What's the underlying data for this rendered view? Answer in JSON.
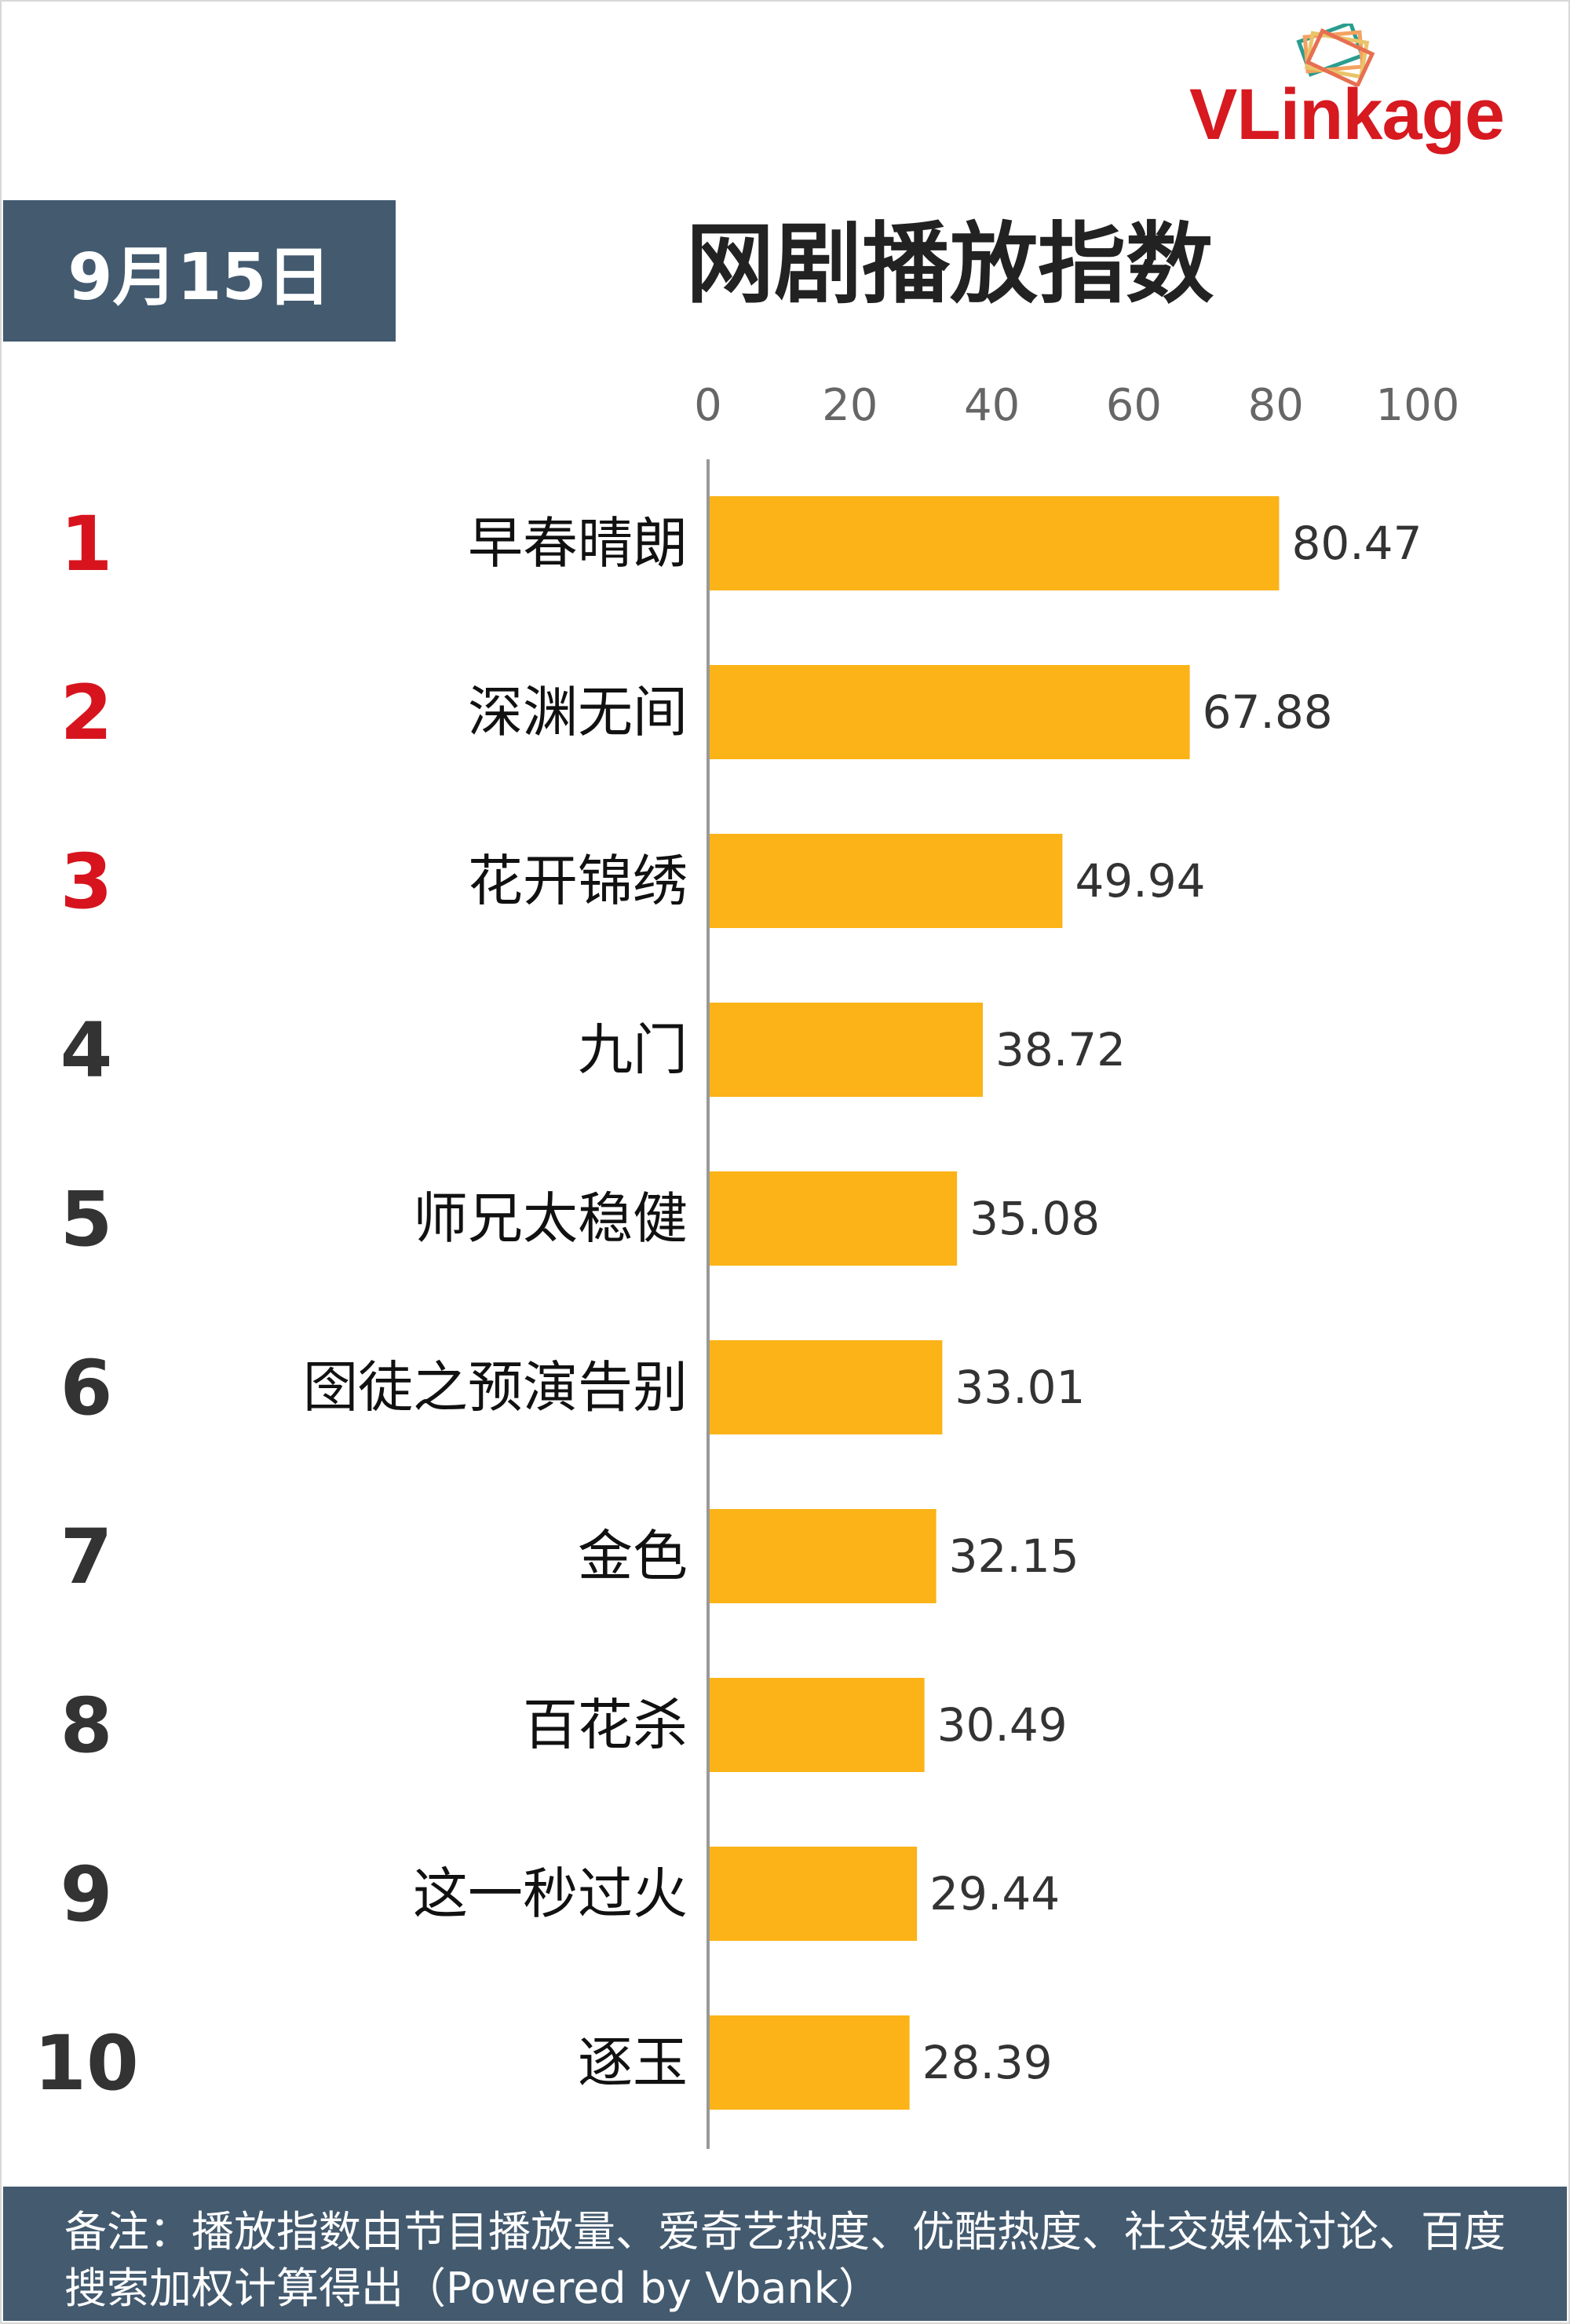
{
  "brand": {
    "logo_prefix": "VL",
    "logo_suffix": "inkage",
    "accent_color": "#d71920"
  },
  "header": {
    "date": "9月15日",
    "title": "网剧播放指数"
  },
  "footer": {
    "note": "备注：播放指数由节目播放量、爱奇艺热度、优酷热度、社交媒体讨论、百度搜索加权计算得出（Powered by Vbank）"
  },
  "colors": {
    "bar": "#fbb317",
    "rank_top3": "#d7141e",
    "rank_other": "#333333",
    "badge_bg": "#435a6f"
  },
  "chart_data": {
    "type": "bar",
    "orientation": "horizontal",
    "title": "网剧播放指数",
    "xlim": [
      0,
      100
    ],
    "ticks": [
      0,
      20,
      40,
      60,
      80,
      100
    ],
    "tick_position": "top",
    "grid": false,
    "ranks": [
      "1",
      "2",
      "3",
      "4",
      "5",
      "6",
      "7",
      "8",
      "9",
      "10"
    ],
    "categories": [
      "早春晴朗",
      "深渊无间",
      "花开锦绣",
      "九门",
      "师兄太稳健",
      "囹徒之预演告别",
      "金色",
      "百花杀",
      "这一秒过火",
      "逐玉"
    ],
    "values": [
      80.47,
      67.88,
      49.94,
      38.72,
      35.08,
      33.01,
      32.15,
      30.49,
      29.44,
      28.39
    ],
    "value_labels": [
      "80.47",
      "67.88",
      "49.94",
      "38.72",
      "35.08",
      "33.01",
      "32.15",
      "30.49",
      "29.44",
      "28.39"
    ]
  }
}
